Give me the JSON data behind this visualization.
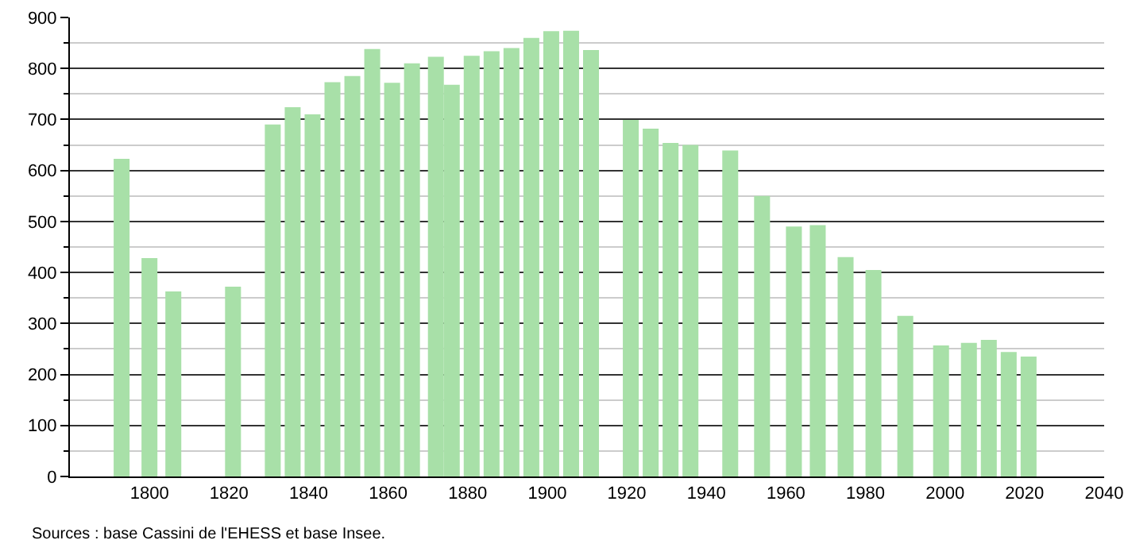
{
  "chart_data": {
    "type": "bar",
    "x": [
      1793,
      1800,
      1806,
      1821,
      1831,
      1836,
      1841,
      1846,
      1851,
      1856,
      1861,
      1866,
      1872,
      1876,
      1881,
      1886,
      1891,
      1896,
      1901,
      1906,
      1911,
      1921,
      1926,
      1931,
      1936,
      1946,
      1954,
      1962,
      1968,
      1975,
      1982,
      1990,
      1999,
      2006,
      2011,
      2016,
      2021
    ],
    "values": [
      623,
      428,
      363,
      372,
      690,
      724,
      710,
      773,
      785,
      838,
      772,
      810,
      823,
      768,
      825,
      834,
      840,
      860,
      873,
      874,
      836,
      699,
      682,
      654,
      650,
      639,
      550,
      490,
      493,
      430,
      405,
      315,
      257,
      262,
      268,
      244,
      235
    ],
    "color": "#a8e0a8",
    "xlim": [
      1780,
      2040
    ],
    "xticks": [
      1800,
      1820,
      1840,
      1860,
      1880,
      1900,
      1920,
      1940,
      1960,
      1980,
      2000,
      2020,
      2040
    ],
    "ylim": [
      0,
      900
    ],
    "yticks": [
      0,
      100,
      200,
      300,
      400,
      500,
      600,
      700,
      800,
      900
    ],
    "grid": "y",
    "annotations": [
      "Sources : base Cassini de l'EHESS et base Insee."
    ]
  }
}
